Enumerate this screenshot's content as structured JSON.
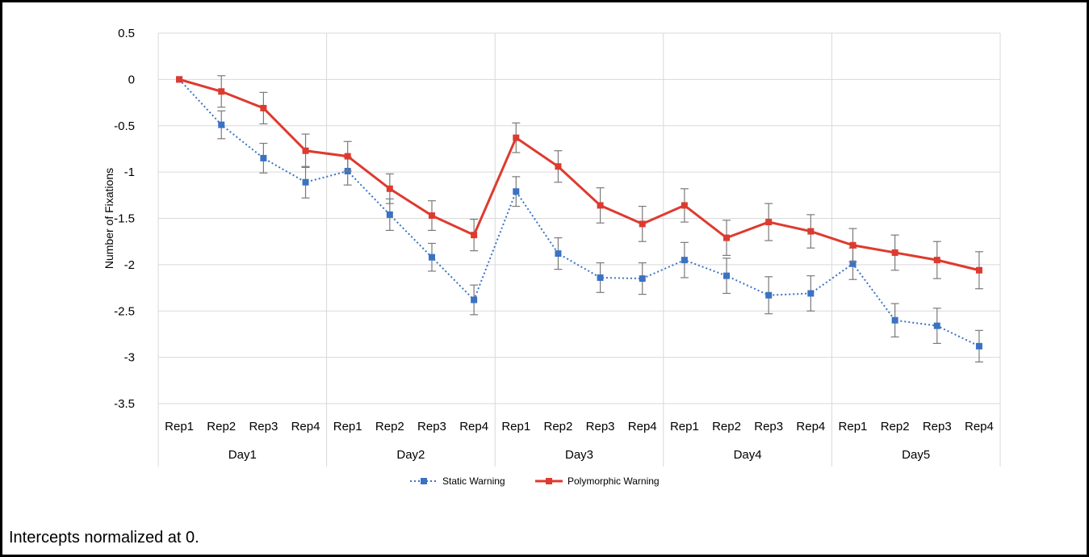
{
  "caption": "Intercepts normalized at 0.",
  "chart_data": {
    "type": "line",
    "title": "",
    "xlabel": "",
    "ylabel": "Number of Fixations",
    "ylim": [
      -3.5,
      0.5
    ],
    "yticks": [
      0.5,
      0,
      -0.5,
      -1,
      -1.5,
      -2,
      -2.5,
      -3,
      -3.5
    ],
    "ytick_labels": [
      "0.5",
      "0",
      "-0.5",
      "-1",
      "-1.5",
      "-2",
      "-2.5",
      "-3",
      "-3.5"
    ],
    "grid": true,
    "legend_position": "bottom",
    "groups": [
      "Day1",
      "Day2",
      "Day3",
      "Day4",
      "Day5"
    ],
    "subcategories": [
      "Rep1",
      "Rep2",
      "Rep3",
      "Rep4"
    ],
    "series": [
      {
        "name": "Static Warning",
        "color": "#3a72c4",
        "line_style": "dotted",
        "values": [
          0,
          -0.49,
          -0.85,
          -1.11,
          -0.99,
          -1.46,
          -1.92,
          -2.38,
          -1.21,
          -1.88,
          -2.14,
          -2.15,
          -1.95,
          -2.12,
          -2.33,
          -2.31,
          -1.99,
          -2.6,
          -2.66,
          -2.88
        ],
        "errors": [
          0,
          0.15,
          0.16,
          0.17,
          0.15,
          0.17,
          0.15,
          0.16,
          0.16,
          0.17,
          0.16,
          0.17,
          0.19,
          0.19,
          0.2,
          0.19,
          0.17,
          0.18,
          0.19,
          0.17
        ]
      },
      {
        "name": "Polymorphic Warning",
        "color": "#de3a2f",
        "line_style": "solid",
        "values": [
          0,
          -0.13,
          -0.31,
          -0.77,
          -0.83,
          -1.18,
          -1.47,
          -1.68,
          -0.63,
          -0.94,
          -1.36,
          -1.56,
          -1.36,
          -1.71,
          -1.54,
          -1.64,
          -1.79,
          -1.87,
          -1.95,
          -2.06
        ],
        "errors": [
          0,
          0.17,
          0.17,
          0.18,
          0.16,
          0.16,
          0.16,
          0.17,
          0.16,
          0.17,
          0.19,
          0.19,
          0.18,
          0.19,
          0.2,
          0.18,
          0.18,
          0.19,
          0.2,
          0.2
        ]
      }
    ]
  }
}
